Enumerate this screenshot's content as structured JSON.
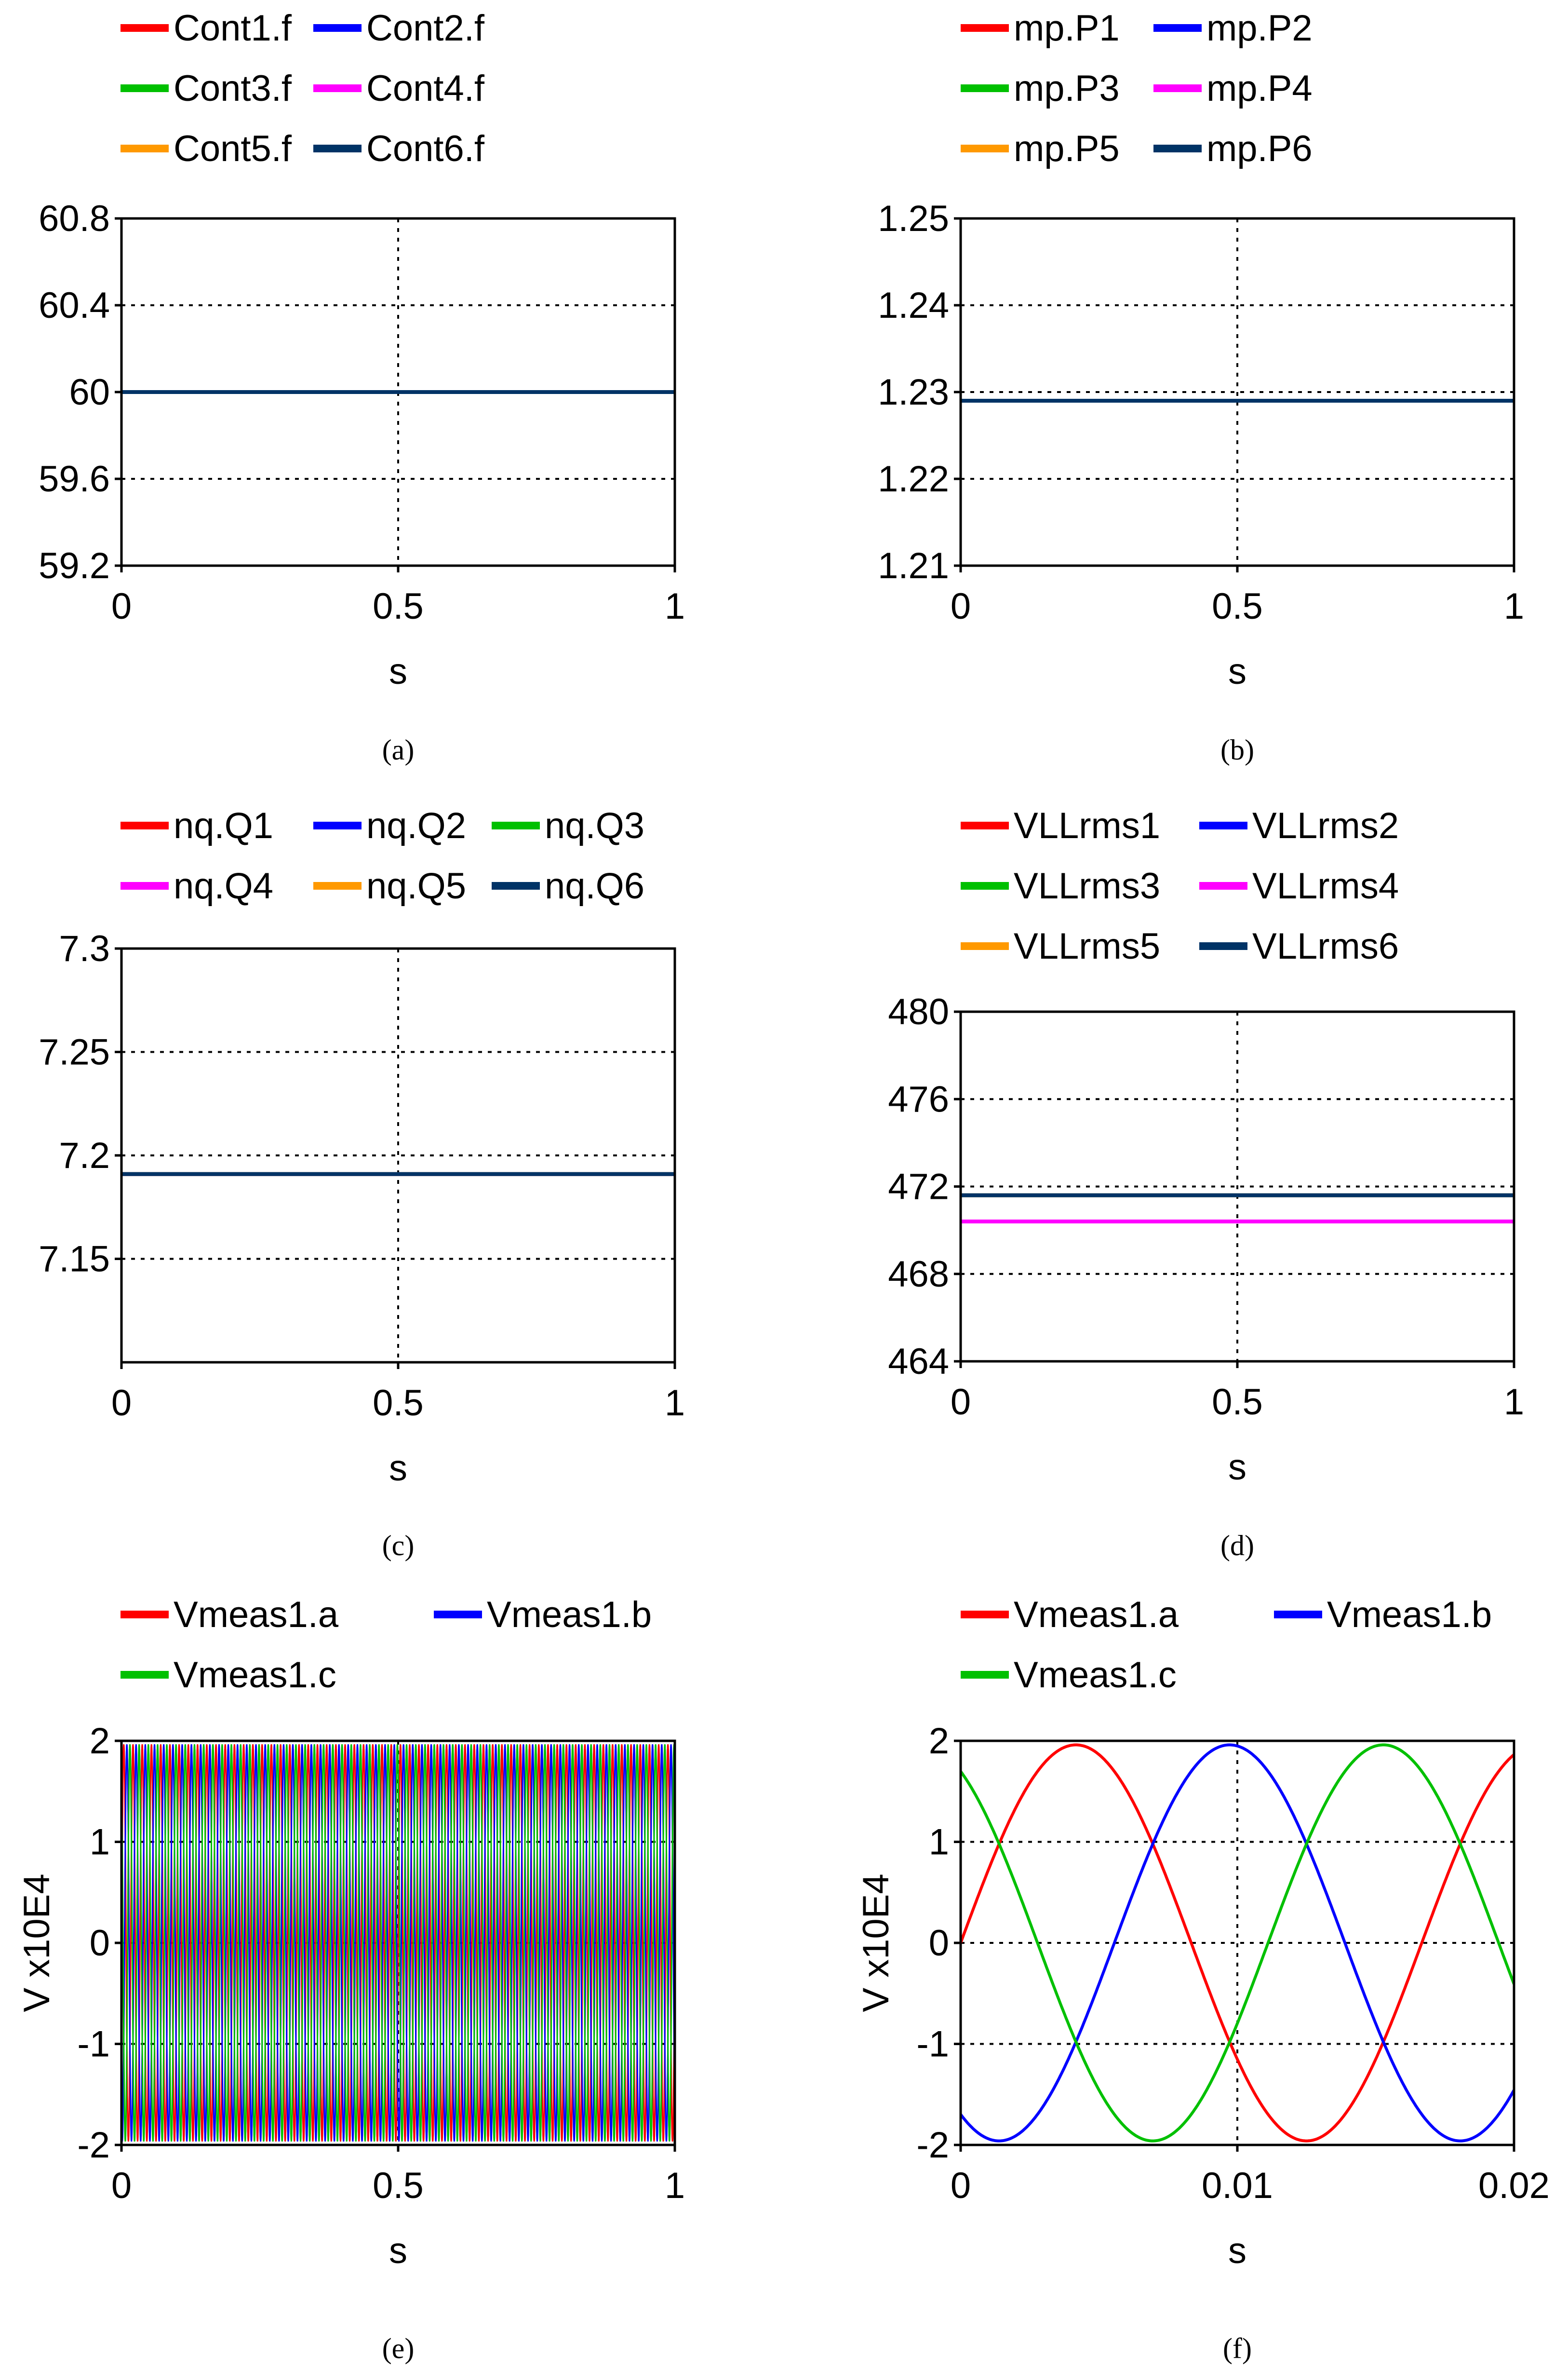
{
  "chart_data": [
    {
      "id": "a",
      "caption": "(a)",
      "type": "line",
      "xlabel": "s",
      "ylabel": "",
      "xlim": [
        0,
        1
      ],
      "ylim": [
        59.2,
        60.8
      ],
      "xticks": [
        "0",
        "0.5",
        "1"
      ],
      "yticks": [
        "60.8",
        "60.4",
        "60",
        "59.6",
        "59.2"
      ],
      "series": [
        {
          "name": "Cont1.f",
          "color": "#ff0000",
          "x": [
            0,
            1
          ],
          "values": [
            60,
            60
          ]
        },
        {
          "name": "Cont2.f",
          "color": "#0000ff",
          "x": [
            0,
            1
          ],
          "values": [
            60,
            60
          ]
        },
        {
          "name": "Cont3.f",
          "color": "#00c000",
          "x": [
            0,
            1
          ],
          "values": [
            60,
            60
          ]
        },
        {
          "name": "Cont4.f",
          "color": "#ff00ff",
          "x": [
            0,
            1
          ],
          "values": [
            60,
            60
          ]
        },
        {
          "name": "Cont5.f",
          "color": "#ff9900",
          "x": [
            0,
            1
          ],
          "values": [
            60,
            60
          ]
        },
        {
          "name": "Cont6.f",
          "color": "#003366",
          "x": [
            0,
            1
          ],
          "values": [
            60,
            60
          ]
        }
      ]
    },
    {
      "id": "b",
      "caption": "(b)",
      "type": "line",
      "xlabel": "s",
      "ylabel": "",
      "xlim": [
        0,
        1
      ],
      "ylim": [
        1.21,
        1.25
      ],
      "xticks": [
        "0",
        "0.5",
        "1"
      ],
      "yticks": [
        "1.25",
        "1.24",
        "1.23",
        "1.22",
        "1.21"
      ],
      "series": [
        {
          "name": "mp.P1",
          "color": "#ff0000",
          "x": [
            0,
            1
          ],
          "values": [
            1.229,
            1.229
          ]
        },
        {
          "name": "mp.P2",
          "color": "#0000ff",
          "x": [
            0,
            1
          ],
          "values": [
            1.229,
            1.229
          ]
        },
        {
          "name": "mp.P3",
          "color": "#00c000",
          "x": [
            0,
            1
          ],
          "values": [
            1.229,
            1.229
          ]
        },
        {
          "name": "mp.P4",
          "color": "#ff00ff",
          "x": [
            0,
            1
          ],
          "values": [
            1.229,
            1.229
          ]
        },
        {
          "name": "mp.P5",
          "color": "#ff9900",
          "x": [
            0,
            1
          ],
          "values": [
            1.229,
            1.229
          ]
        },
        {
          "name": "mp.P6",
          "color": "#003366",
          "x": [
            0,
            1
          ],
          "values": [
            1.229,
            1.229
          ]
        }
      ]
    },
    {
      "id": "c",
      "caption": "(c)",
      "type": "line",
      "xlabel": "s",
      "ylabel": "",
      "xlim": [
        0,
        1
      ],
      "ylim": [
        7.1,
        7.3
      ],
      "xticks": [
        "0",
        "0.5",
        "1"
      ],
      "yticks": [
        "7.3",
        "7.25",
        "7.2",
        "7.15"
      ],
      "series": [
        {
          "name": "nq.Q1",
          "color": "#ff0000",
          "x": [
            0,
            1
          ],
          "values": [
            7.191,
            7.191
          ]
        },
        {
          "name": "nq.Q2",
          "color": "#0000ff",
          "x": [
            0,
            1
          ],
          "values": [
            7.191,
            7.191
          ]
        },
        {
          "name": "nq.Q3",
          "color": "#00c000",
          "x": [
            0,
            1
          ],
          "values": [
            7.191,
            7.191
          ]
        },
        {
          "name": "nq.Q4",
          "color": "#ff00ff",
          "x": [
            0,
            1
          ],
          "values": [
            7.191,
            7.191
          ]
        },
        {
          "name": "nq.Q5",
          "color": "#ff9900",
          "x": [
            0,
            1
          ],
          "values": [
            7.191,
            7.191
          ]
        },
        {
          "name": "nq.Q6",
          "color": "#003366",
          "x": [
            0,
            1
          ],
          "values": [
            7.191,
            7.191
          ]
        }
      ]
    },
    {
      "id": "d",
      "caption": "(d)",
      "type": "line",
      "xlabel": "s",
      "ylabel": "",
      "xlim": [
        0,
        1
      ],
      "ylim": [
        464,
        480
      ],
      "xticks": [
        "0",
        "0.5",
        "1"
      ],
      "yticks": [
        "480",
        "476",
        "472",
        "468",
        "464"
      ],
      "series": [
        {
          "name": "VLLrms1",
          "color": "#ff0000",
          "x": [
            0,
            1
          ],
          "values": [
            471.6,
            471.6
          ]
        },
        {
          "name": "VLLrms2",
          "color": "#0000ff",
          "x": [
            0,
            1
          ],
          "values": [
            471.6,
            471.6
          ]
        },
        {
          "name": "VLLrms3",
          "color": "#00c000",
          "x": [
            0,
            1
          ],
          "values": [
            471.6,
            471.6
          ]
        },
        {
          "name": "VLLrms4",
          "color": "#ff00ff",
          "x": [
            0,
            1
          ],
          "values": [
            470.4,
            470.4
          ]
        },
        {
          "name": "VLLrms5",
          "color": "#ff9900",
          "x": [
            0,
            1
          ],
          "values": [
            471.6,
            471.6
          ]
        },
        {
          "name": "VLLrms6",
          "color": "#003366",
          "x": [
            0,
            1
          ],
          "values": [
            471.6,
            471.6
          ]
        }
      ]
    },
    {
      "id": "e",
      "caption": "(e)",
      "type": "line",
      "xlabel": "s",
      "ylabel": "V x10E4",
      "xlim": [
        0,
        1
      ],
      "ylim": [
        -2,
        2
      ],
      "xticks": [
        "0",
        "0.5",
        "1"
      ],
      "yticks": [
        "2",
        "1",
        "0",
        "-1",
        "-2"
      ],
      "frequency_hz": 60,
      "amplitude": 1.96,
      "dense": true,
      "series": [
        {
          "name": "Vmeas1.a",
          "color": "#ff0000",
          "phase_deg": 0
        },
        {
          "name": "Vmeas1.b",
          "color": "#0000ff",
          "phase_deg": -120
        },
        {
          "name": "Vmeas1.c",
          "color": "#00c000",
          "phase_deg": 120
        }
      ]
    },
    {
      "id": "f",
      "caption": "(f)",
      "type": "line",
      "xlabel": "s",
      "ylabel": "V x10E4",
      "xlim": [
        0,
        0.02
      ],
      "ylim": [
        -2,
        2
      ],
      "xticks": [
        "0",
        "0.01",
        "0.02"
      ],
      "yticks": [
        "2",
        "1",
        "0",
        "-1",
        "-2"
      ],
      "frequency_hz": 60,
      "amplitude": 1.96,
      "dense": false,
      "series": [
        {
          "name": "Vmeas1.a",
          "color": "#ff0000",
          "phase_deg": 0
        },
        {
          "name": "Vmeas1.b",
          "color": "#0000ff",
          "phase_deg": -120
        },
        {
          "name": "Vmeas1.c",
          "color": "#00c000",
          "phase_deg": 120
        }
      ]
    }
  ]
}
